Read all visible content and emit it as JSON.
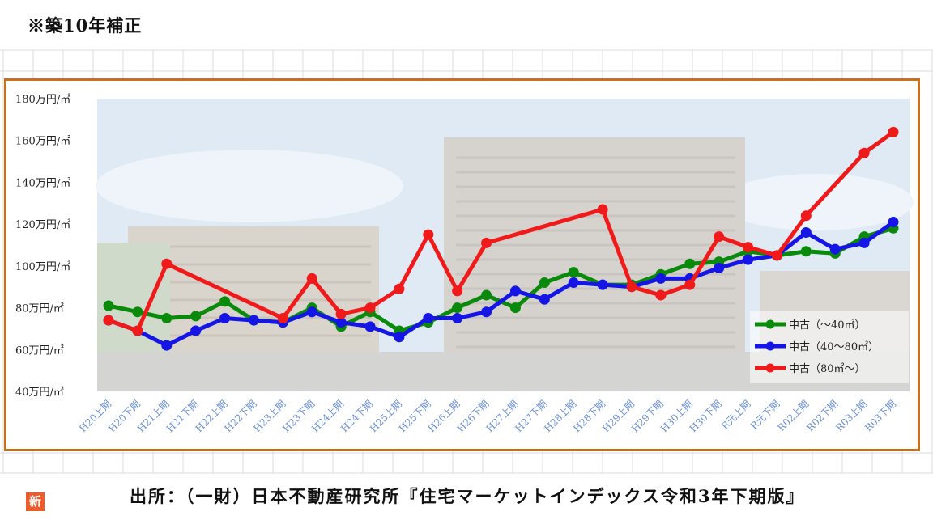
{
  "note": "※築10年補正",
  "source": "出所：（一財）日本不動産研究所『住宅マーケットインデックス令和3年下期版』",
  "logo_text": "新",
  "chart_data": {
    "type": "line",
    "title": "",
    "xlabel": "",
    "ylabel": "",
    "ylim": [
      40,
      180
    ],
    "ytick_values": [
      40,
      60,
      80,
      100,
      120,
      140,
      160,
      180
    ],
    "ytick_labels": [
      "40万円/㎡",
      "60万円/㎡",
      "80万円/㎡",
      "100万円/㎡",
      "120万円/㎡",
      "140万円/㎡",
      "160万円/㎡",
      "180万円/㎡"
    ],
    "categories": [
      "H20上期",
      "H20下期",
      "H21上期",
      "H21下期",
      "H22上期",
      "H22下期",
      "H23上期",
      "H23下期",
      "H24上期",
      "H24下期",
      "H25上期",
      "H25下期",
      "H26上期",
      "H26下期",
      "H27上期",
      "H27下期",
      "H28上期",
      "H28下期",
      "H29上期",
      "H29下期",
      "H30上期",
      "H30下期",
      "R元上期",
      "R元下期",
      "R02上期",
      "R02下期",
      "R03上期",
      "R03下期"
    ],
    "legend_position": "bottom-right",
    "grid": false,
    "series": [
      {
        "name": "中古（～40㎡）",
        "color": "#0a8a0a",
        "values": [
          81,
          78,
          75,
          76,
          83,
          74,
          73,
          80,
          71,
          78,
          69,
          73,
          80,
          86,
          80,
          92,
          97,
          91,
          91,
          96,
          101,
          102,
          107,
          105,
          107,
          106,
          114,
          118
        ]
      },
      {
        "name": "中古（40～80㎡）",
        "color": "#1515e6",
        "values": [
          74,
          69,
          62,
          69,
          75,
          74,
          73,
          78,
          73,
          71,
          66,
          75,
          75,
          78,
          88,
          84,
          92,
          91,
          90,
          94,
          94,
          99,
          103,
          105,
          116,
          108,
          111,
          121
        ]
      },
      {
        "name": "中古（80㎡～）",
        "color": "#f01a1a",
        "values": [
          74,
          69,
          101,
          null,
          null,
          null,
          75,
          94,
          77,
          80,
          89,
          115,
          88,
          111,
          null,
          null,
          null,
          127,
          90,
          86,
          91,
          114,
          109,
          105,
          124,
          null,
          154,
          164
        ]
      }
    ]
  }
}
